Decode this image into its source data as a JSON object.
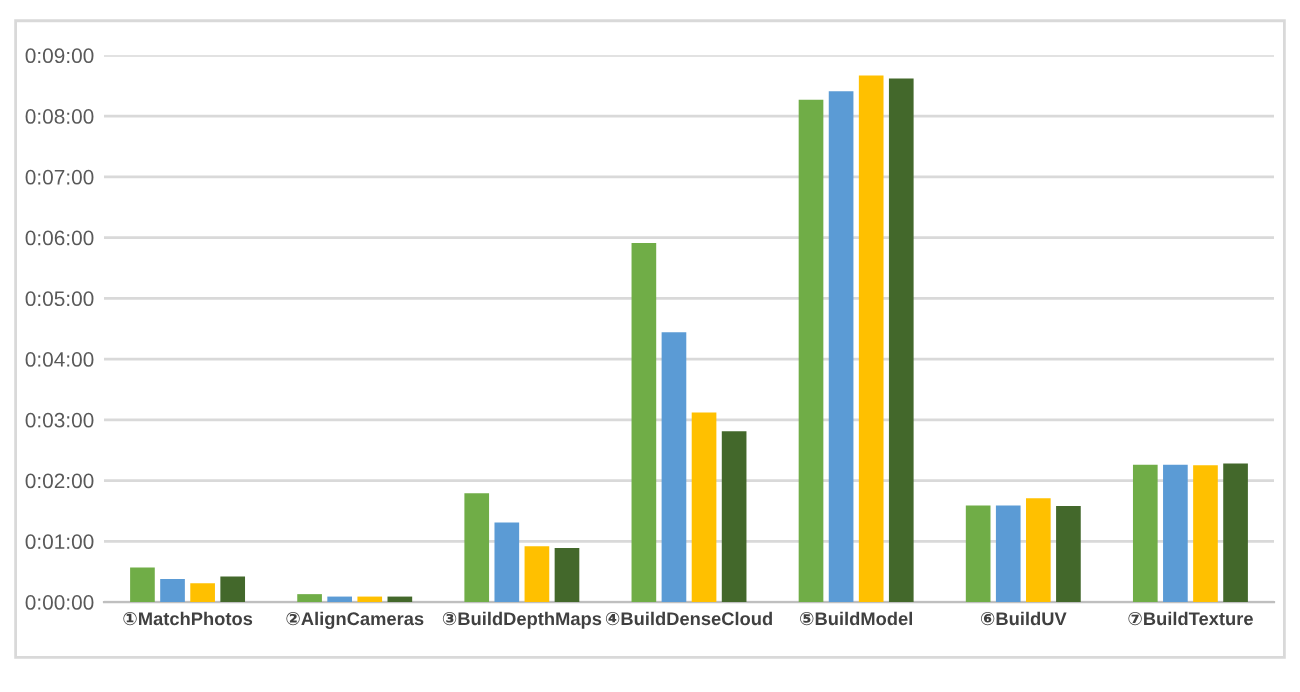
{
  "chart_data": {
    "type": "bar",
    "categories": [
      "①MatchPhotos",
      "②AlignCameras",
      "③BuildDepthMaps",
      "④BuildDenseCloud",
      "⑤BuildModel",
      "⑥BuildUV",
      "⑦BuildTexture"
    ],
    "series": [
      {
        "color": "#70ad47",
        "values": [
          0.57,
          0.13,
          1.79,
          5.91,
          8.27,
          1.59,
          2.26
        ]
      },
      {
        "color": "#5b9bd5",
        "values": [
          0.38,
          0.09,
          1.31,
          4.44,
          8.41,
          1.59,
          2.26
        ]
      },
      {
        "color": "#ffc000",
        "values": [
          0.31,
          0.09,
          0.92,
          3.12,
          8.67,
          1.71,
          2.25
        ]
      },
      {
        "color": "#43682b",
        "values": [
          0.42,
          0.09,
          0.89,
          2.81,
          8.62,
          1.58,
          2.28
        ]
      }
    ],
    "ylim": [
      0,
      9
    ],
    "yticks": [
      {
        "value": 0,
        "label": "0:00:00"
      },
      {
        "value": 1,
        "label": "0:01:00"
      },
      {
        "value": 2,
        "label": "0:02:00"
      },
      {
        "value": 3,
        "label": "0:03:00"
      },
      {
        "value": 4,
        "label": "0:04:00"
      },
      {
        "value": 5,
        "label": "0:05:00"
      },
      {
        "value": 6,
        "label": "0:06:00"
      },
      {
        "value": 7,
        "label": "0:07:00"
      },
      {
        "value": 8,
        "label": "0:08:00"
      },
      {
        "value": 9,
        "label": "0:09:00"
      }
    ],
    "grid": "y"
  }
}
